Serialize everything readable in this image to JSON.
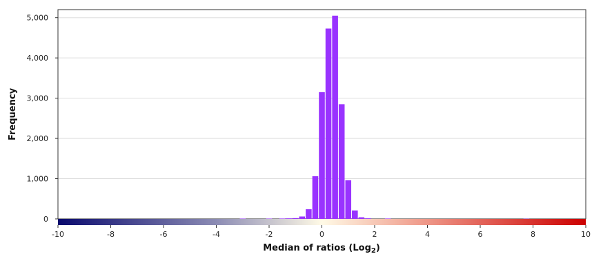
{
  "chart_data": {
    "type": "bar",
    "title": "",
    "xlabel": "Median of ratios (Log",
    "xlabel_sub": "2",
    "xlabel_close": ")",
    "ylabel": "Frequency",
    "xlim": [
      -10,
      10
    ],
    "ylim": [
      0,
      5200
    ],
    "x_ticks": [
      -10,
      -8,
      -6,
      -4,
      -2,
      0,
      2,
      4,
      6,
      8,
      10
    ],
    "x_tick_labels": [
      "-10",
      "-8",
      "-6",
      "-4",
      "-2",
      "0",
      "2",
      "4",
      "6",
      "8",
      "10"
    ],
    "y_ticks": [
      0,
      1000,
      2000,
      3000,
      4000,
      5000
    ],
    "y_tick_labels": [
      "0",
      "1,000",
      "2,000",
      "3,000",
      "4,000",
      "5,000"
    ],
    "bin_width": 0.25,
    "series": [
      {
        "color": "#9933ff",
        "bins_start": [
          -3.125,
          -2.125,
          -1.625,
          -1.375,
          -1.125,
          -0.875,
          -0.625,
          -0.375,
          -0.125,
          0.125,
          0.375,
          0.625,
          0.875,
          1.125,
          1.375,
          1.625,
          2.375,
          7.625
        ],
        "values": [
          8,
          8,
          10,
          14,
          20,
          60,
          240,
          1060,
          3150,
          4730,
          5050,
          2850,
          960,
          210,
          40,
          15,
          10,
          5
        ]
      }
    ],
    "colorbar": {
      "stops": [
        "#0a0a6e",
        "#8c8cb4",
        "#fffae6",
        "#f0a090",
        "#cc0000"
      ]
    },
    "grid": true,
    "legend": "none"
  }
}
